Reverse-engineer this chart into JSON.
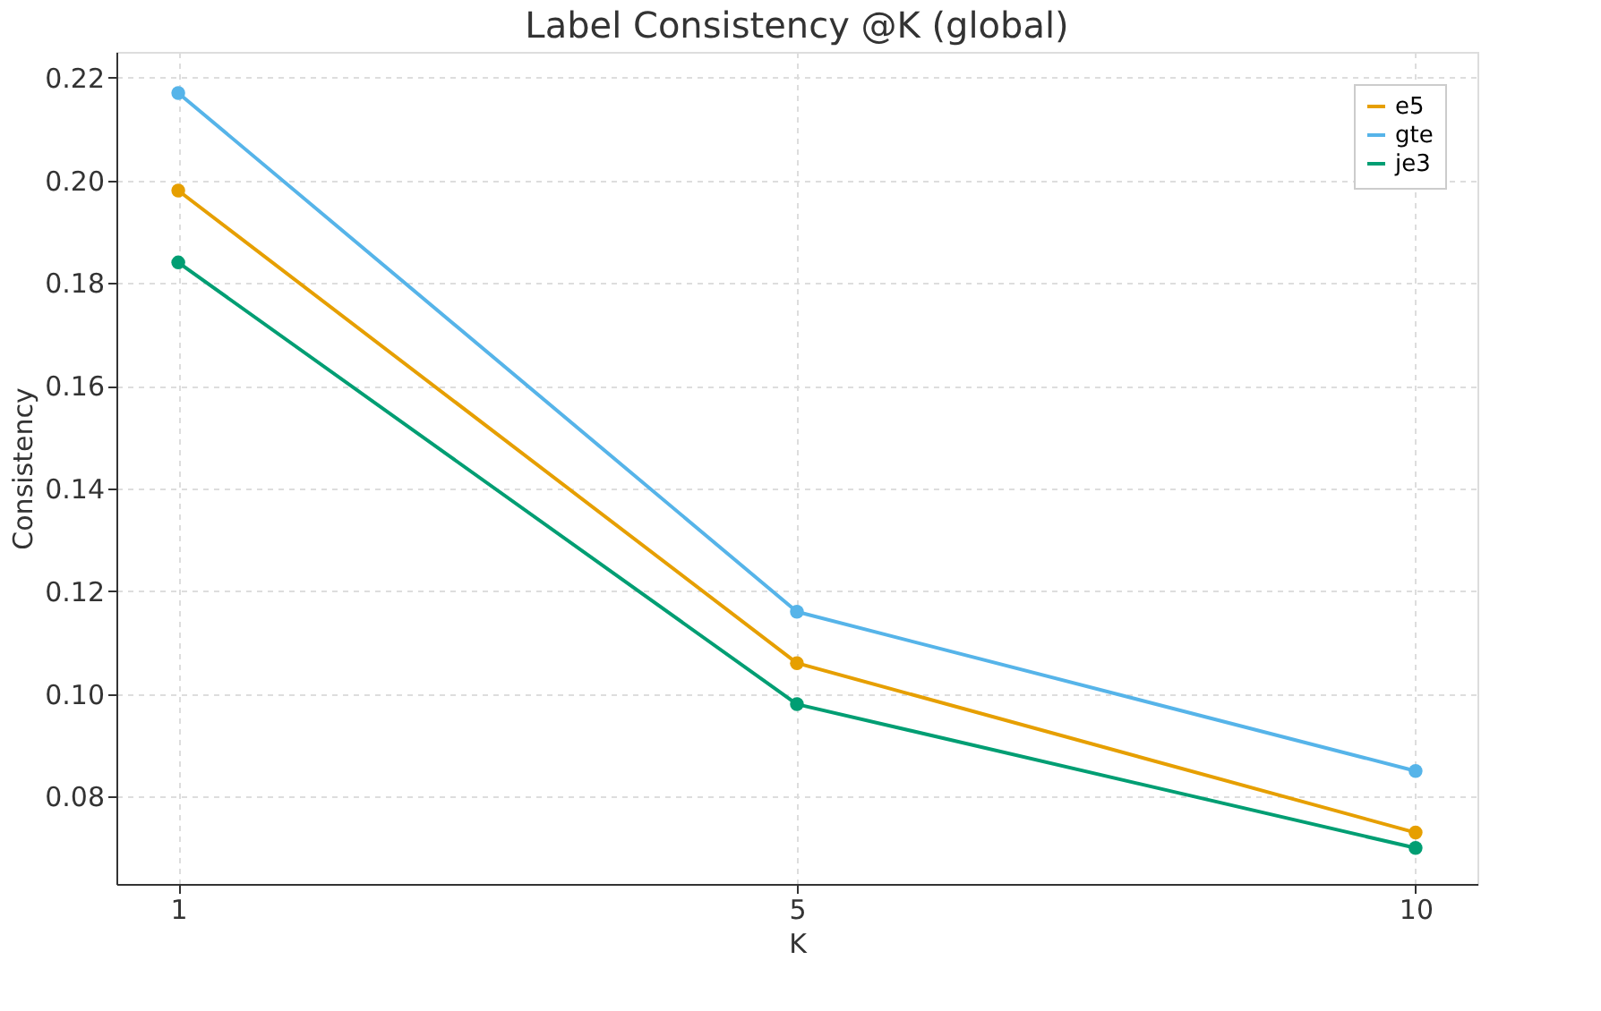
{
  "chart_data": {
    "type": "line",
    "title": "Label Consistency @K (global)",
    "xlabel": "K",
    "ylabel": "Consistency",
    "categories": [
      "1",
      "5",
      "10"
    ],
    "series": [
      {
        "name": "e5",
        "color": "#e69f00",
        "values": [
          0.198,
          0.106,
          0.073
        ]
      },
      {
        "name": "gte",
        "color": "#56b4e9",
        "values": [
          0.217,
          0.116,
          0.085
        ]
      },
      {
        "name": "je3",
        "color": "#009e73",
        "values": [
          0.184,
          0.098,
          0.07
        ]
      }
    ],
    "ylim": [
      0.063,
      0.225
    ],
    "yticks": [
      {
        "value": 0.08,
        "label": "0.08"
      },
      {
        "value": 0.1,
        "label": "0.10"
      },
      {
        "value": 0.12,
        "label": "0.12"
      },
      {
        "value": 0.14,
        "label": "0.14"
      },
      {
        "value": 0.16,
        "label": "0.16"
      },
      {
        "value": 0.18,
        "label": "0.18"
      },
      {
        "value": 0.2,
        "label": "0.20"
      },
      {
        "value": 0.22,
        "label": "0.22"
      }
    ],
    "grid": true,
    "legend": "top right",
    "marker": "circle",
    "line_style": "solid"
  }
}
